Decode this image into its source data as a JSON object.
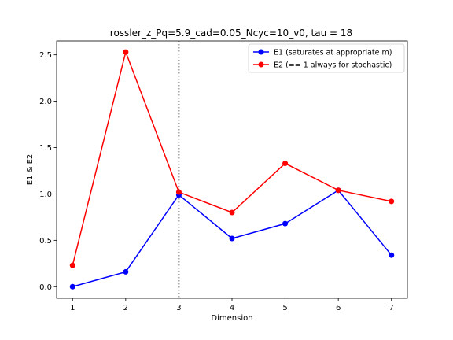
{
  "chart_data": {
    "type": "line",
    "title": "rossler_z_Pq=5.9_cad=0.05_Ncyc=10_v0, tau = 18",
    "xlabel": "Dimension",
    "ylabel": "E1 & E2",
    "x": [
      1,
      2,
      3,
      4,
      5,
      6,
      7
    ],
    "xlim": [
      0.7,
      7.3
    ],
    "ylim": [
      -0.125,
      2.65
    ],
    "xticks": [
      "1",
      "2",
      "3",
      "4",
      "5",
      "6",
      "7"
    ],
    "yticks": [
      "0.0",
      "0.5",
      "1.0",
      "1.5",
      "2.0",
      "2.5"
    ],
    "grid": false,
    "legend_position": "top-right",
    "vline": {
      "x": 3,
      "style": "dotted",
      "color": "#000000"
    },
    "series": [
      {
        "name": "E1 (saturates at appropriate m)",
        "color": "#0000ff",
        "values": [
          0.0,
          0.16,
          0.99,
          0.52,
          0.68,
          1.04,
          0.34
        ]
      },
      {
        "name": "E2 (== 1 always for stochastic)",
        "color": "#ff0000",
        "values": [
          0.23,
          2.53,
          1.02,
          0.8,
          1.33,
          1.04,
          0.92
        ]
      }
    ]
  }
}
